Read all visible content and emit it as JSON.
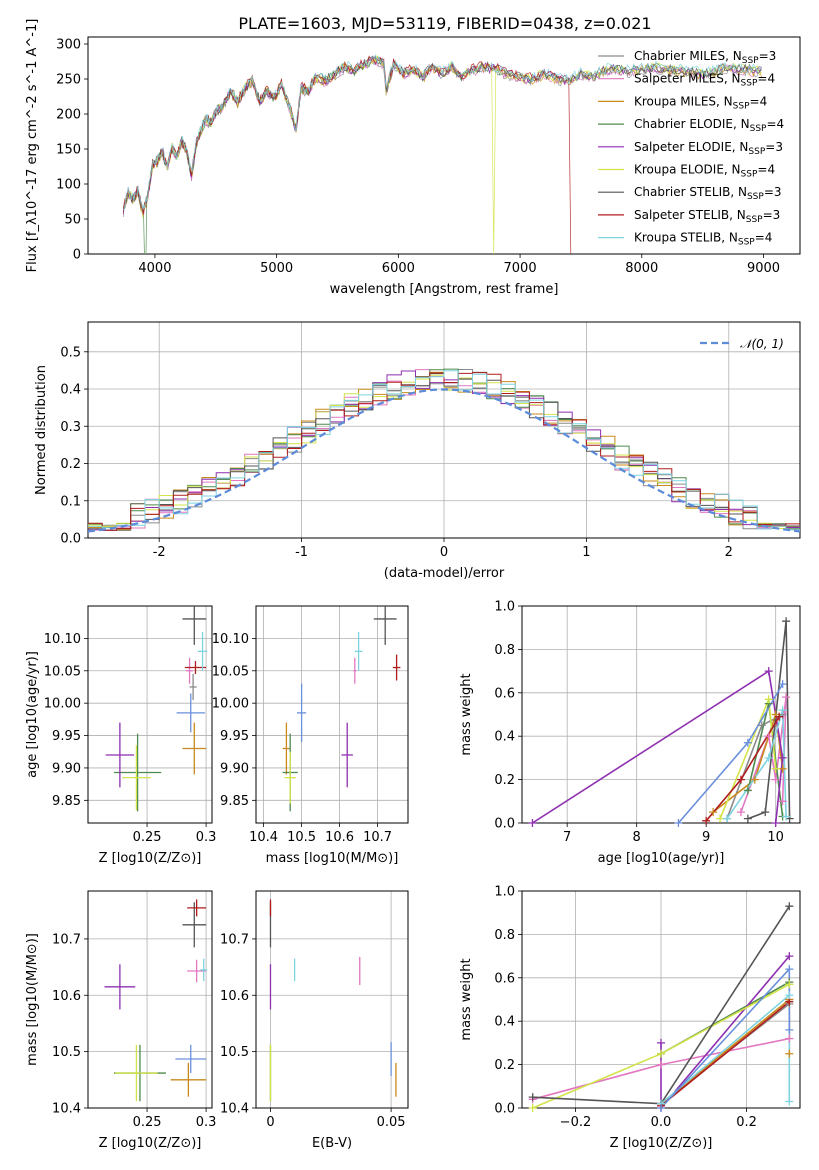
{
  "figure": {
    "title": "PLATE=1603, MJD=53119, FIBERID=0438, z=0.021"
  },
  "models": [
    {
      "name": "Chabrier MILES",
      "nssp": "3",
      "color": "#8a8a8a"
    },
    {
      "name": "Salpeter MILES",
      "nssp": "4",
      "color": "#e377c2"
    },
    {
      "name": "Kroupa MILES",
      "nssp": "4",
      "color": "#c8891a"
    },
    {
      "name": "Chabrier ELODIE",
      "nssp": "4",
      "color": "#4e8a4e"
    },
    {
      "name": "Salpeter ELODIE",
      "nssp": "3",
      "color": "#8e2fb0"
    },
    {
      "name": "Kroupa ELODIE",
      "nssp": "4",
      "color": "#d3e34a"
    },
    {
      "name": "Chabrier STELIB",
      "nssp": "3",
      "color": "#555555"
    },
    {
      "name": "Salpeter STELIB",
      "nssp": "3",
      "color": "#b01d1d"
    },
    {
      "name": "Kroupa STELIB",
      "nssp": "4",
      "color": "#7fd3e0"
    }
  ],
  "chart_data": [
    {
      "id": "spectrum",
      "type": "line",
      "xlabel": "wavelength [Angstrom, rest frame]",
      "ylabel": "Flux [f_λ10^-17 erg cm^-2 s^-1 A^-1]",
      "xlim": [
        3450,
        9300
      ],
      "ylim": [
        0,
        310
      ],
      "xticks": [
        4000,
        5000,
        6000,
        7000,
        8000,
        9000
      ],
      "yticks": [
        0,
        50,
        100,
        150,
        200,
        250,
        300
      ],
      "legend": "right",
      "wavelength": [
        3740,
        3780,
        3820,
        3860,
        3900,
        3940,
        3980,
        4020,
        4060,
        4100,
        4140,
        4180,
        4220,
        4260,
        4300,
        4340,
        4380,
        4420,
        4460,
        4500,
        4560,
        4620,
        4680,
        4740,
        4800,
        4860,
        4920,
        4980,
        5040,
        5100,
        5160,
        5200,
        5260,
        5320,
        5400,
        5480,
        5560,
        5640,
        5720,
        5800,
        5880,
        5900,
        5960,
        6040,
        6120,
        6200,
        6280,
        6360,
        6440,
        6520,
        6600,
        6700,
        6800,
        6900,
        7000,
        7100,
        7200,
        7300,
        7400,
        7500,
        7600,
        7700,
        7800,
        7900,
        8000,
        8100,
        8200,
        8300,
        8400,
        8500,
        8600,
        8700,
        8800,
        8900,
        9000
      ],
      "flux": [
        60,
        85,
        75,
        90,
        55,
        80,
        125,
        130,
        145,
        120,
        150,
        135,
        160,
        145,
        110,
        155,
        175,
        190,
        185,
        200,
        210,
        230,
        215,
        235,
        245,
        215,
        230,
        220,
        240,
        210,
        175,
        235,
        230,
        250,
        245,
        255,
        265,
        260,
        270,
        275,
        270,
        230,
        270,
        255,
        262,
        250,
        265,
        255,
        265,
        250,
        260,
        265,
        262,
        255,
        250,
        248,
        255,
        248,
        245,
        255,
        252,
        260,
        262,
        258,
        262,
        264,
        262,
        260,
        258,
        255,
        258,
        265,
        262,
        260,
        258
      ],
      "dropouts": [
        {
          "model": "Kroupa ELODIE",
          "wavelength": 6790
        },
        {
          "model": "Salpeter STELIB",
          "wavelength": 7420
        },
        {
          "model": "Chabrier ELODIE",
          "wavelength": 3920
        }
      ]
    },
    {
      "id": "residuals",
      "type": "histogram",
      "xlabel": "(data-model)/error",
      "ylabel": "Normed distribution",
      "xlim": [
        -2.5,
        2.5
      ],
      "ylim": [
        0,
        0.58
      ],
      "xticks": [
        -2,
        -1,
        0,
        1,
        2
      ],
      "yticks": [
        0.0,
        0.1,
        0.2,
        0.3,
        0.4,
        0.5
      ],
      "reference_label": "𝒩(0, 1)",
      "reference_color": "#5b8bd9",
      "legend": "top-right"
    },
    {
      "id": "age-vs-Z",
      "type": "scatter",
      "xlabel": "Z [log10(Z/Z⊙)]",
      "ylabel": "age  [log10(age/yr)]",
      "xlim": [
        0.2,
        0.305
      ],
      "ylim": [
        9.815,
        10.15
      ],
      "xticks": [
        0.25,
        0.3
      ],
      "yticks": [
        9.85,
        9.9,
        9.95,
        10.0,
        10.05,
        10.1
      ],
      "points": [
        {
          "model": "Chabrier MILES",
          "x": 0.289,
          "y": 10.025,
          "xe": 0.003,
          "ye": 0.02
        },
        {
          "model": "Salpeter MILES",
          "x": 0.286,
          "y": 10.05,
          "xe": 0.003,
          "ye": 0.02
        },
        {
          "model": "Kroupa MILES",
          "x": 0.29,
          "y": 9.93,
          "xe": 0.01,
          "ye": 0.04
        },
        {
          "model": "Chabrier ELODIE",
          "x": 0.242,
          "y": 9.893,
          "xe": 0.02,
          "ye": 0.06
        },
        {
          "model": "Salpeter ELODIE",
          "x": 0.227,
          "y": 9.92,
          "xe": 0.012,
          "ye": 0.05
        },
        {
          "model": "Kroupa ELODIE",
          "x": 0.241,
          "y": 9.885,
          "xe": 0.012,
          "ye": 0.05
        },
        {
          "model": "Chabrier STELIB",
          "x": 0.29,
          "y": 10.13,
          "xe": 0.01,
          "ye": 0.04
        },
        {
          "model": "Salpeter STELIB",
          "x": 0.291,
          "y": 10.055,
          "xe": 0.009,
          "ye": 0.01
        },
        {
          "model": "Kroupa STELIB",
          "x": 0.297,
          "y": 10.08,
          "xe": 0.004,
          "ye": 0.03
        },
        {
          "model": "Salpeter MILES b",
          "x": 0.287,
          "y": 9.985,
          "xe": 0.012,
          "ye": 0.03,
          "color": "#6a8fdc"
        }
      ]
    },
    {
      "id": "age-vs-mass",
      "type": "scatter",
      "xlabel": "mass [log10(M/M⊙)]",
      "ylabel": "",
      "xlim": [
        10.38,
        10.78
      ],
      "ylim": [
        9.815,
        10.15
      ],
      "xticks": [
        10.4,
        10.5,
        10.6,
        10.7
      ],
      "xtick_labels": [
        "10.4",
        "10.5",
        "10.6",
        "10.7"
      ],
      "yticks": [
        9.85,
        9.9,
        9.95,
        10.0,
        10.05,
        10.1
      ],
      "points": [
        {
          "model": "Chabrier MILES",
          "x": 10.5,
          "y": 9.985,
          "xe": 0.012,
          "ye": 0.045,
          "color": "#6a8fdc"
        },
        {
          "model": "Salpeter MILES",
          "x": 10.64,
          "y": 10.05,
          "xe": 0.004,
          "ye": 0.02
        },
        {
          "model": "Kroupa MILES",
          "x": 10.46,
          "y": 9.93,
          "xe": 0.01,
          "ye": 0.04
        },
        {
          "model": "Chabrier ELODIE",
          "x": 10.47,
          "y": 9.893,
          "xe": 0.02,
          "ye": 0.06
        },
        {
          "model": "Salpeter ELODIE",
          "x": 10.62,
          "y": 9.92,
          "xe": 0.015,
          "ye": 0.05
        },
        {
          "model": "Kroupa ELODIE",
          "x": 10.47,
          "y": 9.885,
          "xe": 0.015,
          "ye": 0.04
        },
        {
          "model": "Chabrier STELIB",
          "x": 10.72,
          "y": 10.13,
          "xe": 0.03,
          "ye": 0.04
        },
        {
          "model": "Salpeter STELIB",
          "x": 10.75,
          "y": 10.055,
          "xe": 0.01,
          "ye": 0.02
        },
        {
          "model": "Kroupa STELIB",
          "x": 10.65,
          "y": 10.08,
          "xe": 0.01,
          "ye": 0.03
        }
      ]
    },
    {
      "id": "weight-vs-age",
      "type": "line",
      "xlabel": "age  [log10(age/yr)]",
      "ylabel": "mass weight",
      "xlim": [
        6.35,
        10.35
      ],
      "ylim": [
        0,
        1.0
      ],
      "xticks": [
        7,
        8,
        9,
        10
      ],
      "yticks": [
        0.0,
        0.2,
        0.4,
        0.6,
        0.8,
        1.0
      ],
      "series": [
        {
          "model": "Chabrier MILES",
          "x": [
            9.3,
            9.8,
            10.1
          ],
          "y": [
            0.02,
            0.45,
            0.5
          ]
        },
        {
          "model": "Salpeter MILES",
          "x": [
            9.5,
            9.9,
            10.0,
            10.15,
            10.1
          ],
          "y": [
            0.05,
            0.4,
            0.2,
            0.58,
            0.1
          ]
        },
        {
          "model": "Kroupa MILES",
          "x": [
            9.1,
            9.7,
            10.0,
            10.1
          ],
          "y": [
            0.05,
            0.2,
            0.5,
            0.25
          ]
        },
        {
          "model": "Chabrier ELODIE",
          "x": [
            9.6,
            9.9,
            10.1
          ],
          "y": [
            0.15,
            0.55,
            0.03
          ]
        },
        {
          "model": "Salpeter ELODIE",
          "x": [
            6.5,
            9.9,
            10.1,
            10.0
          ],
          "y": [
            0.0,
            0.7,
            0.3,
            0.0
          ]
        },
        {
          "model": "Kroupa ELODIE",
          "x": [
            9.2,
            9.9,
            10.0
          ],
          "y": [
            0.02,
            0.57,
            0.25
          ]
        },
        {
          "model": "Chabrier STELIB",
          "x": [
            9.6,
            9.85,
            10.15,
            10.2
          ],
          "y": [
            0.02,
            0.05,
            0.93,
            0.02
          ]
        },
        {
          "model": "Salpeter STELIB",
          "x": [
            9.0,
            9.5,
            10.05
          ],
          "y": [
            0.01,
            0.2,
            0.49
          ]
        },
        {
          "model": "Kroupa STELIB",
          "x": [
            9.3,
            9.9,
            10.1,
            10.15
          ],
          "y": [
            0.02,
            0.3,
            0.52,
            0.03
          ]
        },
        {
          "model": "Salpeter MILES b",
          "x": [
            8.6,
            9.6,
            10.1
          ],
          "y": [
            0.0,
            0.37,
            0.64
          ],
          "color": "#6a8fdc"
        }
      ]
    },
    {
      "id": "mass-vs-Z",
      "type": "scatter",
      "xlabel": "Z [log10(Z/Z⊙)]",
      "ylabel": "mass [log10(M/M⊙)]",
      "xlim": [
        0.2,
        0.305
      ],
      "ylim": [
        10.4,
        10.785
      ],
      "xticks": [
        0.25,
        0.3
      ],
      "yticks": [
        10.4,
        10.5,
        10.6,
        10.7
      ],
      "points": [
        {
          "model": "Chabrier MILES",
          "x": 0.287,
          "y": 10.487,
          "xe": 0.013,
          "ye": 0.025,
          "color": "#6a8fdc"
        },
        {
          "model": "Salpeter MILES",
          "x": 0.292,
          "y": 10.643,
          "xe": 0.008,
          "ye": 0.02
        },
        {
          "model": "Kroupa MILES",
          "x": 0.285,
          "y": 10.45,
          "xe": 0.015,
          "ye": 0.03
        },
        {
          "model": "Chabrier ELODIE",
          "x": 0.244,
          "y": 10.462,
          "xe": 0.022,
          "ye": 0.05
        },
        {
          "model": "Salpeter ELODIE",
          "x": 0.227,
          "y": 10.615,
          "xe": 0.013,
          "ye": 0.04
        },
        {
          "model": "Kroupa ELODIE",
          "x": 0.241,
          "y": 10.462,
          "xe": 0.018,
          "ye": 0.05
        },
        {
          "model": "Chabrier STELIB",
          "x": 0.29,
          "y": 10.725,
          "xe": 0.01,
          "ye": 0.04
        },
        {
          "model": "Salpeter STELIB",
          "x": 0.292,
          "y": 10.755,
          "xe": 0.008,
          "ye": 0.015
        },
        {
          "model": "Kroupa STELIB",
          "x": 0.298,
          "y": 10.645,
          "xe": 0.003,
          "ye": 0.02
        }
      ]
    },
    {
      "id": "mass-vs-EBV",
      "type": "scatter",
      "xlabel": "E(B-V)",
      "ylabel": "",
      "xlim": [
        -0.006,
        0.057
      ],
      "ylim": [
        10.4,
        10.785
      ],
      "xticks": [
        0.0,
        0.05
      ],
      "yticks": [
        10.4,
        10.5,
        10.6,
        10.7
      ],
      "points": [
        {
          "model": "Chabrier MILES",
          "x": 0.05,
          "y": 10.487,
          "xe": 0,
          "ye": 0.03,
          "color": "#6a8fdc"
        },
        {
          "model": "Salpeter MILES",
          "x": 0.037,
          "y": 10.643,
          "xe": 0,
          "ye": 0.025
        },
        {
          "model": "Kroupa MILES",
          "x": 0.052,
          "y": 10.45,
          "xe": 0,
          "ye": 0.03
        },
        {
          "model": "Chabrier ELODIE",
          "x": 0.0,
          "y": 10.462,
          "xe": 0,
          "ye": 0.05
        },
        {
          "model": "Salpeter ELODIE",
          "x": 0.0,
          "y": 10.615,
          "xe": 0,
          "ye": 0.04
        },
        {
          "model": "Kroupa ELODIE",
          "x": 0.0,
          "y": 10.462,
          "xe": 0,
          "ye": 0.05
        },
        {
          "model": "Chabrier STELIB",
          "x": 0.0,
          "y": 10.725,
          "xe": 0,
          "ye": 0.04
        },
        {
          "model": "Salpeter STELIB",
          "x": 0.0,
          "y": 10.755,
          "xe": 0,
          "ye": 0.015
        },
        {
          "model": "Kroupa STELIB",
          "x": 0.01,
          "y": 10.645,
          "xe": 0,
          "ye": 0.02
        }
      ]
    },
    {
      "id": "weight-vs-Z",
      "type": "line",
      "xlabel": "Z [log10(Z/Z⊙)]",
      "ylabel": "mass weight",
      "xlim": [
        -0.325,
        0.325
      ],
      "ylim": [
        0,
        1.0
      ],
      "xticks": [
        -0.2,
        0.0,
        0.2
      ],
      "xtick_labels": [
        "−0.2",
        "0.0",
        "0.2"
      ],
      "yticks": [
        0.0,
        0.2,
        0.4,
        0.6,
        0.8,
        1.0
      ],
      "series": [
        {
          "model": "Chabrier MILES",
          "x": [
            0.0,
            0.3,
            0.3
          ],
          "y": [
            0.02,
            0.48,
            0.5
          ]
        },
        {
          "model": "Salpeter MILES",
          "x": [
            -0.3,
            0.0,
            0.3,
            0.3
          ],
          "y": [
            0.04,
            0.2,
            0.32,
            0.58
          ]
        },
        {
          "model": "Kroupa MILES",
          "x": [
            0.0,
            0.3,
            0.3
          ],
          "y": [
            0.02,
            0.5,
            0.25
          ]
        },
        {
          "model": "Chabrier ELODIE",
          "x": [
            0.0,
            0.3
          ],
          "y": [
            0.25,
            0.58
          ]
        },
        {
          "model": "Salpeter ELODIE",
          "x": [
            0.0,
            0.0,
            0.3
          ],
          "y": [
            0.3,
            0.0,
            0.7
          ]
        },
        {
          "model": "Kroupa ELODIE",
          "x": [
            -0.3,
            0.0,
            0.3
          ],
          "y": [
            0.0,
            0.25,
            0.57
          ]
        },
        {
          "model": "Chabrier STELIB",
          "x": [
            -0.3,
            0.0,
            0.3
          ],
          "y": [
            0.05,
            0.02,
            0.93
          ]
        },
        {
          "model": "Salpeter STELIB",
          "x": [
            0.0,
            0.3
          ],
          "y": [
            0.01,
            0.49
          ]
        },
        {
          "model": "Kroupa STELIB",
          "x": [
            0.0,
            0.3,
            0.3
          ],
          "y": [
            0.02,
            0.52,
            0.03
          ]
        },
        {
          "model": "Salpeter MILES b",
          "x": [
            0.0,
            0.3,
            0.3
          ],
          "y": [
            0.0,
            0.64,
            0.36
          ],
          "color": "#6a8fdc"
        }
      ]
    }
  ]
}
